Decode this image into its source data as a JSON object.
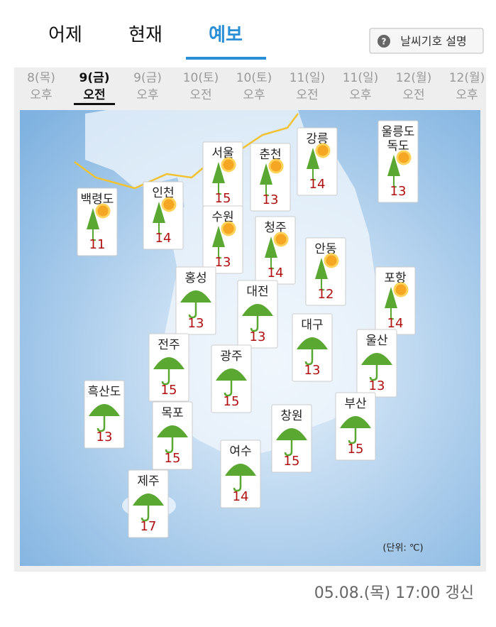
{
  "tabs": {
    "items": [
      "어제",
      "현재",
      "예보"
    ],
    "active": 2
  },
  "help_button": "날씨기호 설명",
  "time_slots": {
    "items": [
      {
        "day": "8(목)",
        "period": "오후"
      },
      {
        "day": "9(금)",
        "period": "오전"
      },
      {
        "day": "9(금)",
        "period": "오후"
      },
      {
        "day": "10(토)",
        "period": "오전"
      },
      {
        "day": "10(토)",
        "period": "오후"
      },
      {
        "day": "11(일)",
        "period": "오전"
      },
      {
        "day": "11(일)",
        "period": "오후"
      },
      {
        "day": "12(월)",
        "period": "오전"
      },
      {
        "day": "12(월)",
        "period": "오후"
      }
    ],
    "selected": 1
  },
  "cities": [
    {
      "name": "백령도",
      "temp": 11,
      "sun": true
    },
    {
      "name": "인천",
      "temp": 14,
      "sun": true
    },
    {
      "name": "서울",
      "temp": 15,
      "sun": true
    },
    {
      "name": "수원",
      "temp": 13,
      "sun": true
    },
    {
      "name": "춘천",
      "temp": 13,
      "sun": true
    },
    {
      "name": "강릉",
      "temp": 14,
      "sun": true
    },
    {
      "name": "울릉도\n독도",
      "temp": 13,
      "sun": true
    },
    {
      "name": "청주",
      "temp": 14,
      "sun": true
    },
    {
      "name": "안동",
      "temp": 12,
      "sun": true
    },
    {
      "name": "홍성",
      "temp": 13,
      "sun": false
    },
    {
      "name": "대전",
      "temp": 13,
      "sun": false
    },
    {
      "name": "포항",
      "temp": 14,
      "sun": true
    },
    {
      "name": "대구",
      "temp": 13,
      "sun": false
    },
    {
      "name": "울산",
      "temp": 13,
      "sun": false
    },
    {
      "name": "전주",
      "temp": 15,
      "sun": false
    },
    {
      "name": "광주",
      "temp": 15,
      "sun": false
    },
    {
      "name": "흑산도",
      "temp": 13,
      "sun": false
    },
    {
      "name": "목포",
      "temp": 15,
      "sun": false
    },
    {
      "name": "부산",
      "temp": 15,
      "sun": false
    },
    {
      "name": "창원",
      "temp": 15,
      "sun": false
    },
    {
      "name": "여수",
      "temp": 14,
      "sun": false
    },
    {
      "name": "제주",
      "temp": 17,
      "sun": false
    }
  ],
  "unit": "(단위: ℃)",
  "updated": "05.08.(목) 17:00 갱신"
}
